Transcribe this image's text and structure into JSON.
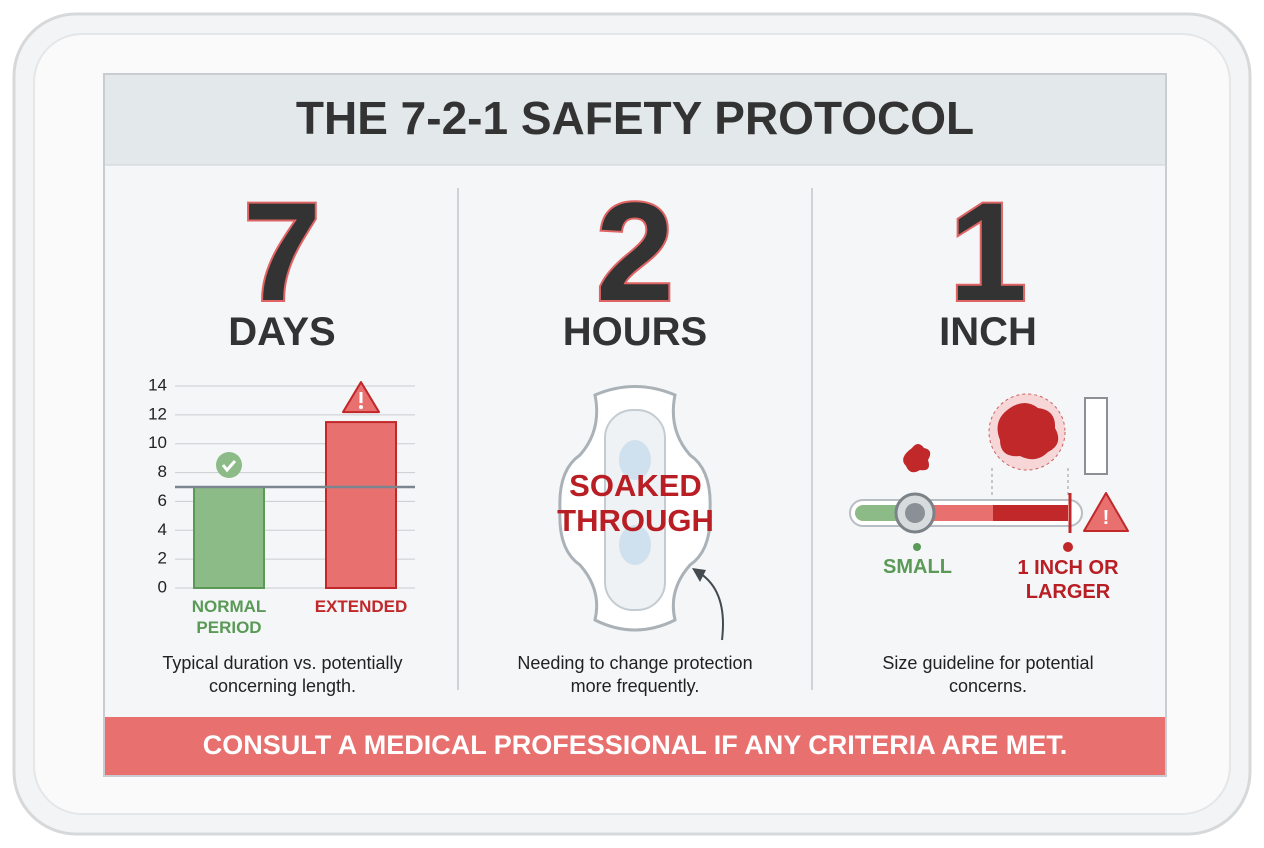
{
  "title": "THE 7-2-1 SAFETY PROTOCOL",
  "panels": [
    {
      "number": "7",
      "unit": "DAYS",
      "caption": "Typical duration vs. potentially concerning length.",
      "chart": {
        "type": "bar",
        "categories": [
          "NORMAL PERIOD",
          "EXTENDED"
        ],
        "values": [
          7,
          11.5
        ],
        "colors": [
          "#8dbb88",
          "#e8706f"
        ],
        "label_colors": [
          "#5a9a56",
          "#c0282a"
        ],
        "ylim": [
          0,
          14
        ],
        "yticks": [
          0,
          2,
          4,
          6,
          8,
          10,
          12,
          14
        ],
        "threshold": 7,
        "grid": true
      }
    },
    {
      "number": "2",
      "unit": "HOURS",
      "label": "SOAKED THROUGH",
      "caption": "Needing to change protection more frequently."
    },
    {
      "number": "1",
      "unit": "INCH",
      "labels": [
        "SMALL",
        "1 INCH OR LARGER"
      ],
      "caption": "Size guideline for potential concerns."
    }
  ],
  "footer": "CONSULT A MEDICAL PROFESSIONAL IF ANY CRITERIA ARE MET."
}
